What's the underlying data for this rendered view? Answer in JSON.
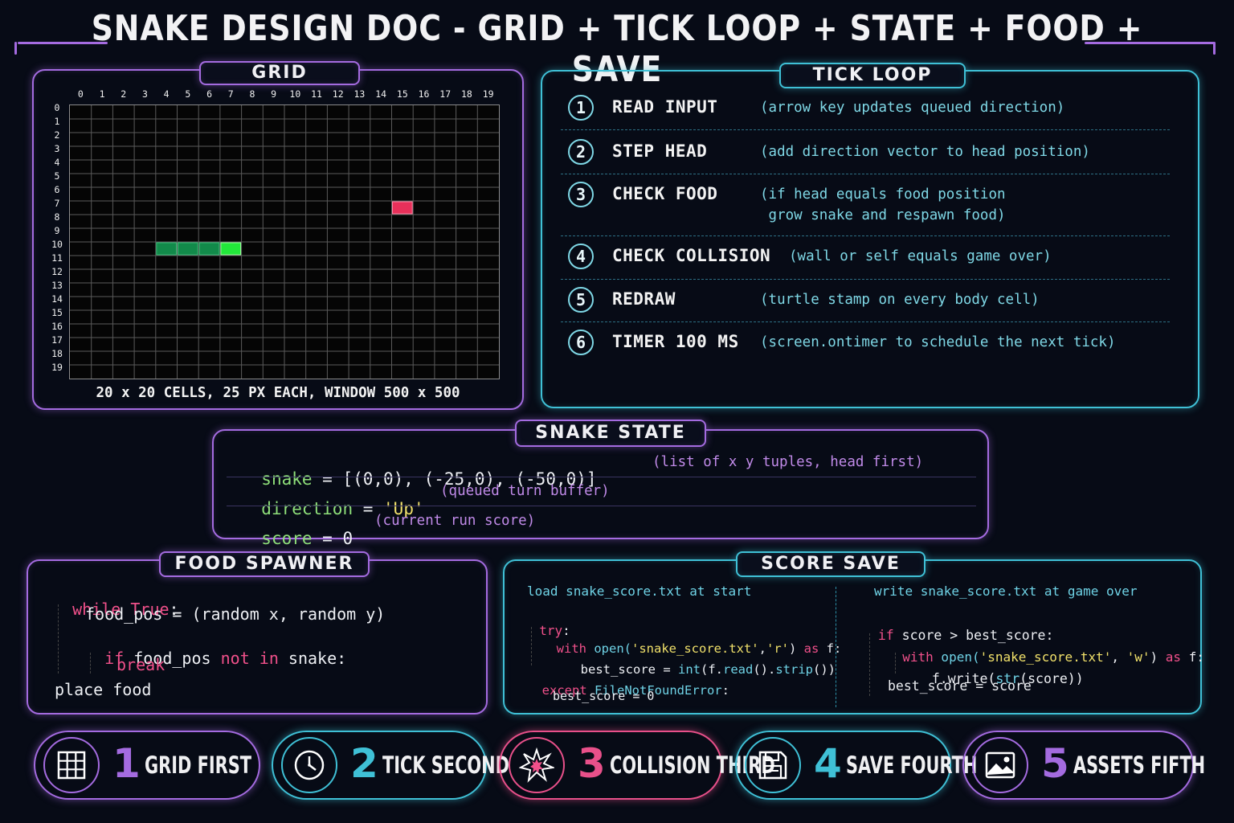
{
  "title": "SNAKE DESIGN DOC - GRID + TICK LOOP + STATE + FOOD + SAVE",
  "grid": {
    "tab": "GRID",
    "cols": 20,
    "rows": 20,
    "col_labels": [
      "0",
      "1",
      "2",
      "3",
      "4",
      "5",
      "6",
      "7",
      "8",
      "9",
      "10",
      "11",
      "12",
      "13",
      "14",
      "15",
      "16",
      "17",
      "18",
      "19"
    ],
    "row_labels": [
      "0",
      "1",
      "2",
      "3",
      "4",
      "5",
      "6",
      "7",
      "8",
      "9",
      "10",
      "11",
      "12",
      "13",
      "14",
      "15",
      "16",
      "17",
      "18",
      "19"
    ],
    "snake_cells": [
      [
        4,
        10
      ],
      [
        5,
        10
      ],
      [
        6,
        10
      ],
      [
        7,
        10
      ]
    ],
    "head_cell": [
      7,
      10
    ],
    "food_cell": [
      15,
      7
    ],
    "caption": "20 x 20 CELLS, 25 PX EACH, WINDOW 500 x 500",
    "colors": {
      "body": "#128a4a",
      "head": "#22e83a",
      "food": "#e8305a"
    }
  },
  "tick_loop": {
    "tab": "TICK LOOP",
    "steps": [
      {
        "num": "1",
        "label": "READ INPUT",
        "desc": "(arrow key updates queued direction)"
      },
      {
        "num": "2",
        "label": "STEP HEAD",
        "desc": "(add direction vector to head position)"
      },
      {
        "num": "3",
        "label": "CHECK FOOD",
        "desc": "(if head equals food position\n grow snake and respawn food)"
      },
      {
        "num": "4",
        "label": "CHECK COLLISION",
        "desc": "(wall or self equals game over)"
      },
      {
        "num": "5",
        "label": "REDRAW",
        "desc": "(turtle stamp on every body cell)"
      },
      {
        "num": "6",
        "label": "TIMER 100 MS",
        "desc": "(screen.ontimer to schedule the next tick)"
      }
    ]
  },
  "snake_state": {
    "tab": "SNAKE STATE",
    "line1": {
      "var": "snake",
      "eq": " = ",
      "value": "[(0,0), (-25,0), (-50,0)]",
      "comment": "(list of x y tuples, head first)"
    },
    "line2": {
      "var": "direction",
      "eq": " = ",
      "value": "'Up'",
      "comment": "(queued turn buffer)"
    },
    "line3": {
      "var": "score",
      "eq": " = ",
      "value": "0",
      "comment": "(current run score)"
    }
  },
  "food_spawner": {
    "tab": "FOOD SPAWNER",
    "l1_kw": "while",
    "l1_val": "True",
    "l1_end": ":",
    "l2": "food_pos = (random x, random y)",
    "l3_kw": "if",
    "l3_a": " food_pos ",
    "l3_kw2": "not in",
    "l3_b": " snake:",
    "l4": "break",
    "l5": "place food"
  },
  "score_save": {
    "tab": "SCORE SAVE",
    "left_title": "load snake_score.txt at start",
    "right_title": "write snake_score.txt at game over",
    "left": {
      "try": "try",
      "try_end": ":",
      "with": "with",
      "open": " open(",
      "file": "'snake_score.txt'",
      "comma": ",",
      "mode": "'r'",
      "close": ") ",
      "as": "as",
      "f": " f:",
      "best_a": "best_score = ",
      "int": "int",
      "best_b": "(f.",
      "read": "read",
      "best_c": "().",
      "strip": "strip",
      "best_d": "())",
      "except": "except",
      "err": " FileNotFoundError",
      "err_end": ":",
      "fallback": "best_score = 0"
    },
    "right": {
      "if": "if",
      "cond": " score > best_score:",
      "with": "with",
      "open": " open(",
      "file": "'snake_score.txt'",
      "comma": ", ",
      "mode": "'w'",
      "close": ") ",
      "as": "as",
      "f": " f:",
      "write_a": "f.write(",
      "str": "str",
      "write_b": "(score))",
      "assign": "best_score = score"
    }
  },
  "pills": [
    {
      "num": "1",
      "label": "GRID FIRST",
      "icon": "grid-icon",
      "color": "#a46be0"
    },
    {
      "num": "2",
      "label": "TICK SECOND",
      "icon": "clock-icon",
      "color": "#3fc0d6"
    },
    {
      "num": "3",
      "label": "COLLISION THIRD",
      "icon": "burst-icon",
      "color": "#e8508a"
    },
    {
      "num": "4",
      "label": "SAVE FOURTH",
      "icon": "floppy-icon",
      "color": "#3fc0d6"
    },
    {
      "num": "5",
      "label": "ASSETS FIFTH",
      "icon": "image-icon",
      "color": "#a46be0"
    }
  ]
}
